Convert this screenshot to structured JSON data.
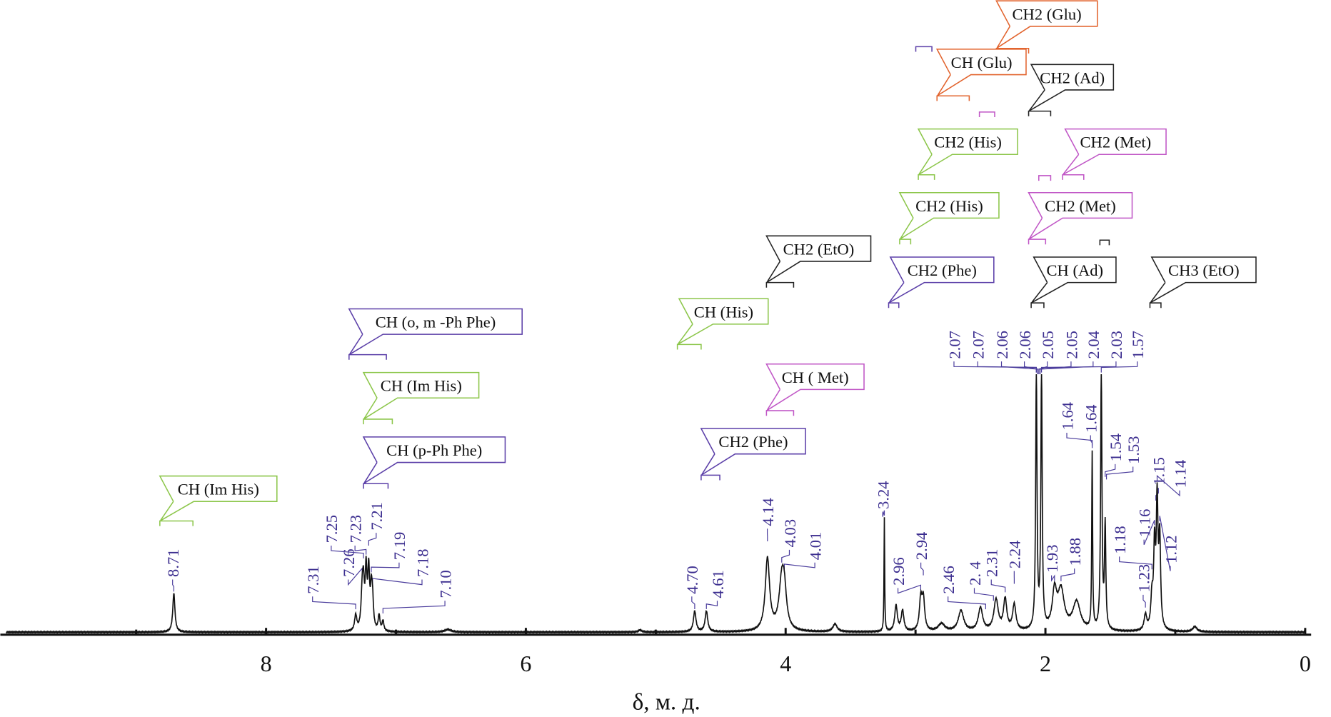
{
  "chart_data": {
    "type": "line",
    "title": "",
    "xlabel": "δ, м. д.",
    "ylabel": "",
    "xlim": [
      10,
      0
    ],
    "x_reversed": true,
    "grid": false,
    "x_ticks": [
      "8",
      "6",
      "4",
      "2",
      "0"
    ],
    "x_tick_values": [
      8,
      6,
      4,
      2,
      0
    ],
    "x_minor_ticks": [
      9,
      7,
      5,
      3,
      1
    ],
    "spectrum_color": "#111111",
    "label_color": "#3b2d8f",
    "peaks": [
      {
        "ppm": 8.71,
        "h": 15,
        "w": 0.01
      },
      {
        "ppm": 7.31,
        "h": 6,
        "w": 0.01
      },
      {
        "ppm": 7.26,
        "h": 14,
        "w": 0.01
      },
      {
        "ppm": 7.25,
        "h": 14,
        "w": 0.008
      },
      {
        "ppm": 7.23,
        "h": 22,
        "w": 0.008
      },
      {
        "ppm": 7.21,
        "h": 22,
        "w": 0.008
      },
      {
        "ppm": 7.19,
        "h": 14,
        "w": 0.008
      },
      {
        "ppm": 7.18,
        "h": 10,
        "w": 0.008
      },
      {
        "ppm": 7.13,
        "h": 6,
        "w": 0.008
      },
      {
        "ppm": 7.1,
        "h": 4,
        "w": 0.008
      },
      {
        "ppm": 6.6,
        "h": 1,
        "w": 0.03
      },
      {
        "ppm": 5.12,
        "h": 0.8,
        "w": 0.015
      },
      {
        "ppm": 4.7,
        "h": 8,
        "w": 0.012
      },
      {
        "ppm": 4.61,
        "h": 8,
        "w": 0.012
      },
      {
        "ppm": 4.14,
        "h": 28,
        "w": 0.02
      },
      {
        "ppm": 4.03,
        "h": 18,
        "w": 0.025
      },
      {
        "ppm": 4.01,
        "h": 12,
        "w": 0.02
      },
      {
        "ppm": 3.62,
        "h": 3,
        "w": 0.02
      },
      {
        "ppm": 3.24,
        "h": 44,
        "w": 0.003
      },
      {
        "ppm": 3.15,
        "h": 10,
        "w": 0.012
      },
      {
        "ppm": 3.1,
        "h": 8,
        "w": 0.012
      },
      {
        "ppm": 2.96,
        "h": 12,
        "w": 0.012
      },
      {
        "ppm": 2.94,
        "h": 12,
        "w": 0.012
      },
      {
        "ppm": 2.8,
        "h": 3,
        "w": 0.03
      },
      {
        "ppm": 2.65,
        "h": 8,
        "w": 0.025
      },
      {
        "ppm": 2.5,
        "h": 9,
        "w": 0.02
      },
      {
        "ppm": 2.38,
        "h": 12,
        "w": 0.02
      },
      {
        "ppm": 2.31,
        "h": 12,
        "w": 0.015
      },
      {
        "ppm": 2.24,
        "h": 10,
        "w": 0.015
      },
      {
        "ppm": 2.07,
        "h": 100,
        "w": 0.006
      },
      {
        "ppm": 2.03,
        "h": 100,
        "w": 0.006
      },
      {
        "ppm": 1.93,
        "h": 14,
        "w": 0.02
      },
      {
        "ppm": 1.88,
        "h": 15,
        "w": 0.03
      },
      {
        "ppm": 1.76,
        "h": 11,
        "w": 0.035
      },
      {
        "ppm": 1.64,
        "h": 68,
        "w": 0.004
      },
      {
        "ppm": 1.57,
        "h": 100,
        "w": 0.006
      },
      {
        "ppm": 1.54,
        "h": 40,
        "w": 0.006
      },
      {
        "ppm": 1.23,
        "h": 6,
        "w": 0.012
      },
      {
        "ppm": 1.18,
        "h": 12,
        "w": 0.01
      },
      {
        "ppm": 1.16,
        "h": 30,
        "w": 0.008
      },
      {
        "ppm": 1.14,
        "h": 48,
        "w": 0.008
      },
      {
        "ppm": 1.12,
        "h": 34,
        "w": 0.008
      },
      {
        "ppm": 0.85,
        "h": 2,
        "w": 0.02
      }
    ],
    "peak_labels": [
      {
        "text": "8.71",
        "ppm": 8.71
      },
      {
        "text": "7.31",
        "ppm": 7.31
      },
      {
        "text": "7.26",
        "ppm": 7.26
      },
      {
        "text": "7.25",
        "ppm": 7.25
      },
      {
        "text": "7.23",
        "ppm": 7.23
      },
      {
        "text": "7.21",
        "ppm": 7.21
      },
      {
        "text": "7.19",
        "ppm": 7.19
      },
      {
        "text": "7.18",
        "ppm": 7.18
      },
      {
        "text": "7.10",
        "ppm": 7.1
      },
      {
        "text": "4.70",
        "ppm": 4.7
      },
      {
        "text": "4.61",
        "ppm": 4.61
      },
      {
        "text": "4.14",
        "ppm": 4.14
      },
      {
        "text": "4.03",
        "ppm": 4.03
      },
      {
        "text": "4.01",
        "ppm": 4.01
      },
      {
        "text": "3.24",
        "ppm": 3.24
      },
      {
        "text": "2.96",
        "ppm": 2.96
      },
      {
        "text": "2.94",
        "ppm": 2.94
      },
      {
        "text": "2.46",
        "ppm": 2.46
      },
      {
        "text": "2. 4",
        "ppm": 2.4
      },
      {
        "text": "2.31",
        "ppm": 2.31
      },
      {
        "text": "2.24",
        "ppm": 2.24
      },
      {
        "text": "2.07",
        "ppm": 2.07
      },
      {
        "text": "2.07",
        "ppm": 2.07
      },
      {
        "text": "2.06",
        "ppm": 2.06
      },
      {
        "text": "2.06",
        "ppm": 2.06
      },
      {
        "text": "2.05",
        "ppm": 2.05
      },
      {
        "text": "2.05",
        "ppm": 2.05
      },
      {
        "text": "2.04",
        "ppm": 2.04
      },
      {
        "text": "2.03",
        "ppm": 2.03
      },
      {
        "text": "1.57",
        "ppm": 1.57
      },
      {
        "text": "1.93",
        "ppm": 1.93
      },
      {
        "text": "1.88",
        "ppm": 1.88
      },
      {
        "text": "1.64",
        "ppm": 1.64
      },
      {
        "text": "1.64",
        "ppm": 1.64
      },
      {
        "text": "1.54",
        "ppm": 1.54
      },
      {
        "text": "1.53",
        "ppm": 1.53
      },
      {
        "text": "1.15",
        "ppm": 1.15
      },
      {
        "text": "1.14",
        "ppm": 1.14
      },
      {
        "text": "1.18",
        "ppm": 1.18
      },
      {
        "text": "1.16",
        "ppm": 1.16
      },
      {
        "text": "1.12",
        "ppm": 1.12
      },
      {
        "text": "1.23",
        "ppm": 1.23
      }
    ],
    "annotations": [
      {
        "text": "CH (Im His)",
        "color": "#8cc64a"
      },
      {
        "text": "CH (o, m -Ph Phe)",
        "color": "#5b3fa8"
      },
      {
        "text": "CH (Im His)",
        "color": "#8cc64a"
      },
      {
        "text": "CH (p-Ph Phe)",
        "color": "#5b3fa8"
      },
      {
        "text": "CH (His)",
        "color": "#8cc64a"
      },
      {
        "text": "CH2 (EtO)",
        "color": "#222222"
      },
      {
        "text": "CH ( Met)",
        "color": "#c056c6"
      },
      {
        "text": "CH2 (Phe)",
        "color": "#5b3fa8"
      },
      {
        "text": "CH2 (Glu)",
        "color": "#e2642e"
      },
      {
        "text": "CH (Glu)",
        "color": "#e2642e"
      },
      {
        "text": "CH2 (Ad)",
        "color": "#222222"
      },
      {
        "text": "CH2 (His)",
        "color": "#8cc64a"
      },
      {
        "text": "CH2 (Met)",
        "color": "#c056c6"
      },
      {
        "text": "CH2 (His)",
        "color": "#8cc64a"
      },
      {
        "text": "CH2 (Met)",
        "color": "#c056c6"
      },
      {
        "text": "CH2 (Phe)",
        "color": "#5b3fa8"
      },
      {
        "text": "CH (Ad)",
        "color": "#222222"
      },
      {
        "text": "CH3 (EtO)",
        "color": "#222222"
      }
    ]
  }
}
